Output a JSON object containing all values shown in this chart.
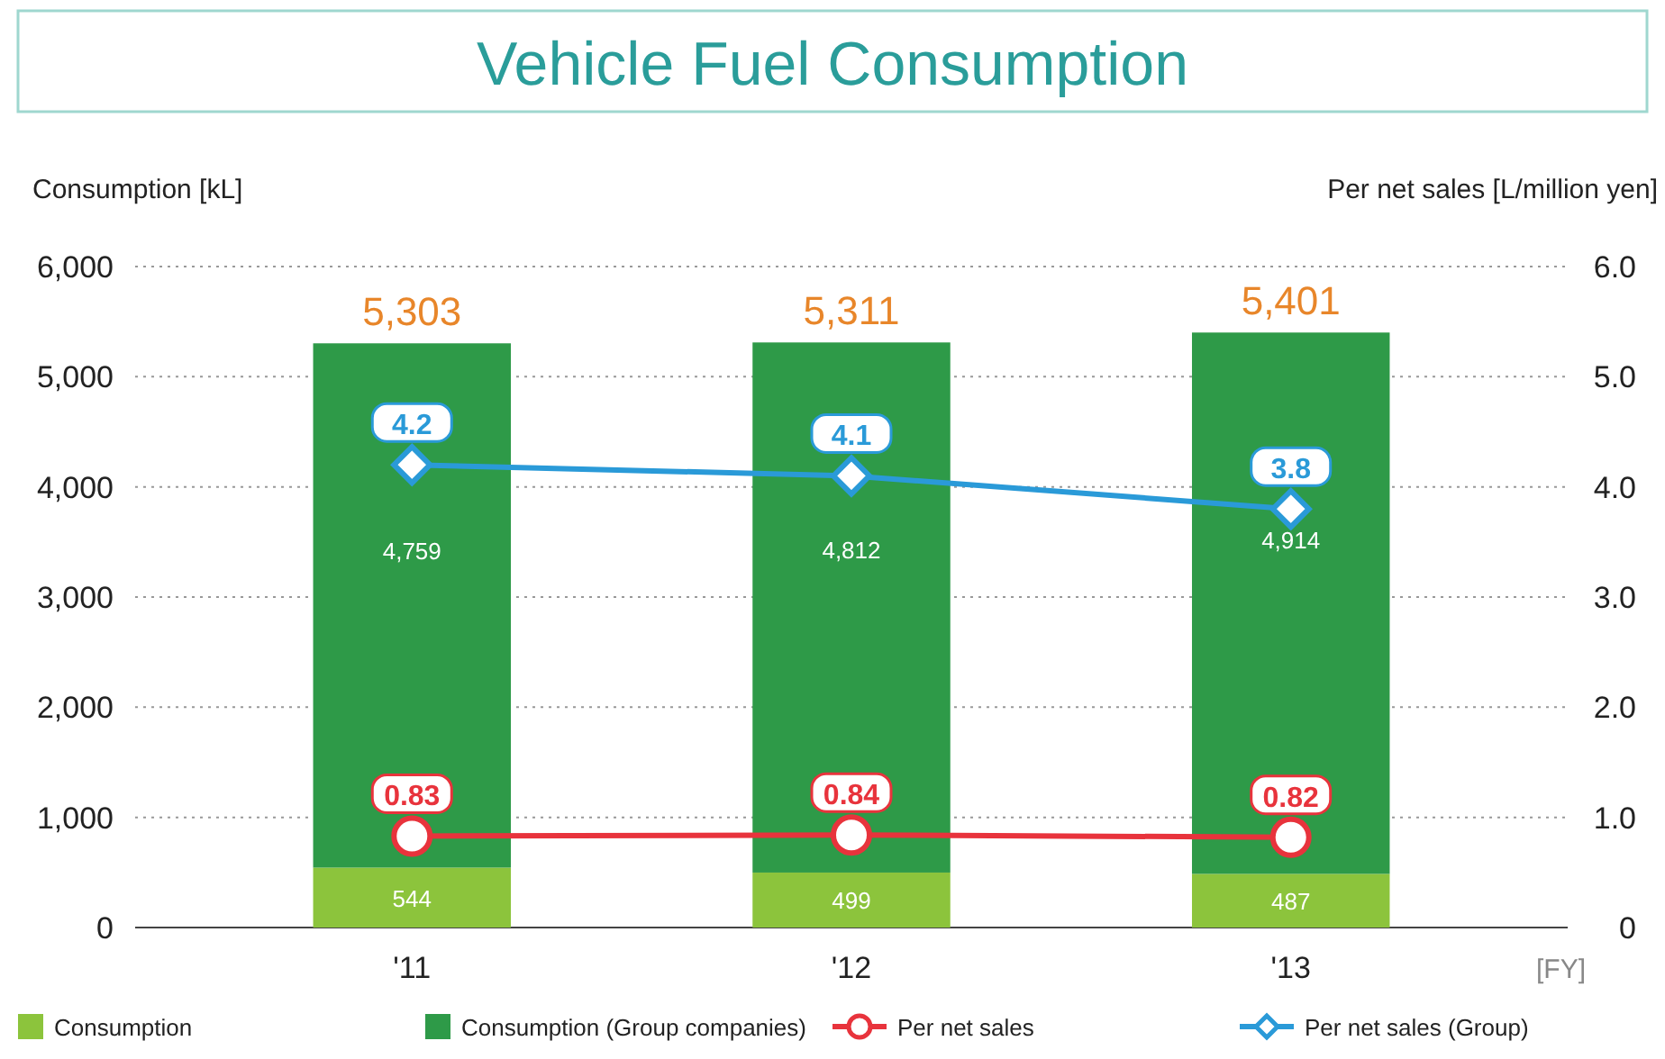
{
  "chart_data": {
    "type": "bar",
    "title": "Vehicle Fuel Consumption",
    "ylabel": "Consumption [kL]",
    "y2label": "Per net sales [L/million yen]",
    "xlabel": "[FY]",
    "categories": [
      "'11",
      "'12",
      "'13"
    ],
    "stacked": true,
    "series": [
      {
        "name": "Consumption",
        "color": "#8cc43c",
        "values": [
          544,
          499,
          487
        ],
        "value_labels": [
          "544",
          "499",
          "487"
        ]
      },
      {
        "name": "Consumption (Group companies)",
        "color": "#2e9a48",
        "values": [
          4759,
          4812,
          4914
        ],
        "value_labels": [
          "4,759",
          "4,812",
          "4,914"
        ]
      },
      {
        "name": "Per net sales",
        "type": "line",
        "axis": "y2",
        "color": "#e8333c",
        "marker": "circle",
        "values": [
          0.83,
          0.84,
          0.82
        ],
        "value_labels": [
          "0.83",
          "0.84",
          "0.82"
        ]
      },
      {
        "name": "Per net sales (Group)",
        "type": "line",
        "axis": "y2",
        "color": "#2a9ad8",
        "marker": "diamond",
        "values": [
          4.2,
          4.1,
          3.8
        ],
        "value_labels": [
          "4.2",
          "4.1",
          "3.8"
        ]
      }
    ],
    "totals": [
      "5,303",
      "5,311",
      "5,401"
    ],
    "ylim": [
      0,
      6000
    ],
    "yticks": [
      {
        "value": 0,
        "label": "0"
      },
      {
        "value": 1000,
        "label": "1,000"
      },
      {
        "value": 2000,
        "label": "2,000"
      },
      {
        "value": 3000,
        "label": "3,000"
      },
      {
        "value": 4000,
        "label": "4,000"
      },
      {
        "value": 5000,
        "label": "5,000"
      },
      {
        "value": 6000,
        "label": "6,000"
      }
    ],
    "y2lim": [
      0,
      6
    ],
    "y2ticks": [
      {
        "value": 0,
        "label": "0"
      },
      {
        "value": 1,
        "label": "1.0"
      },
      {
        "value": 2,
        "label": "2.0"
      },
      {
        "value": 3,
        "label": "3.0"
      },
      {
        "value": 4,
        "label": "4.0"
      },
      {
        "value": 5,
        "label": "5.0"
      },
      {
        "value": 6,
        "label": "6.0"
      }
    ],
    "grid": "y",
    "legend": "bottom"
  }
}
